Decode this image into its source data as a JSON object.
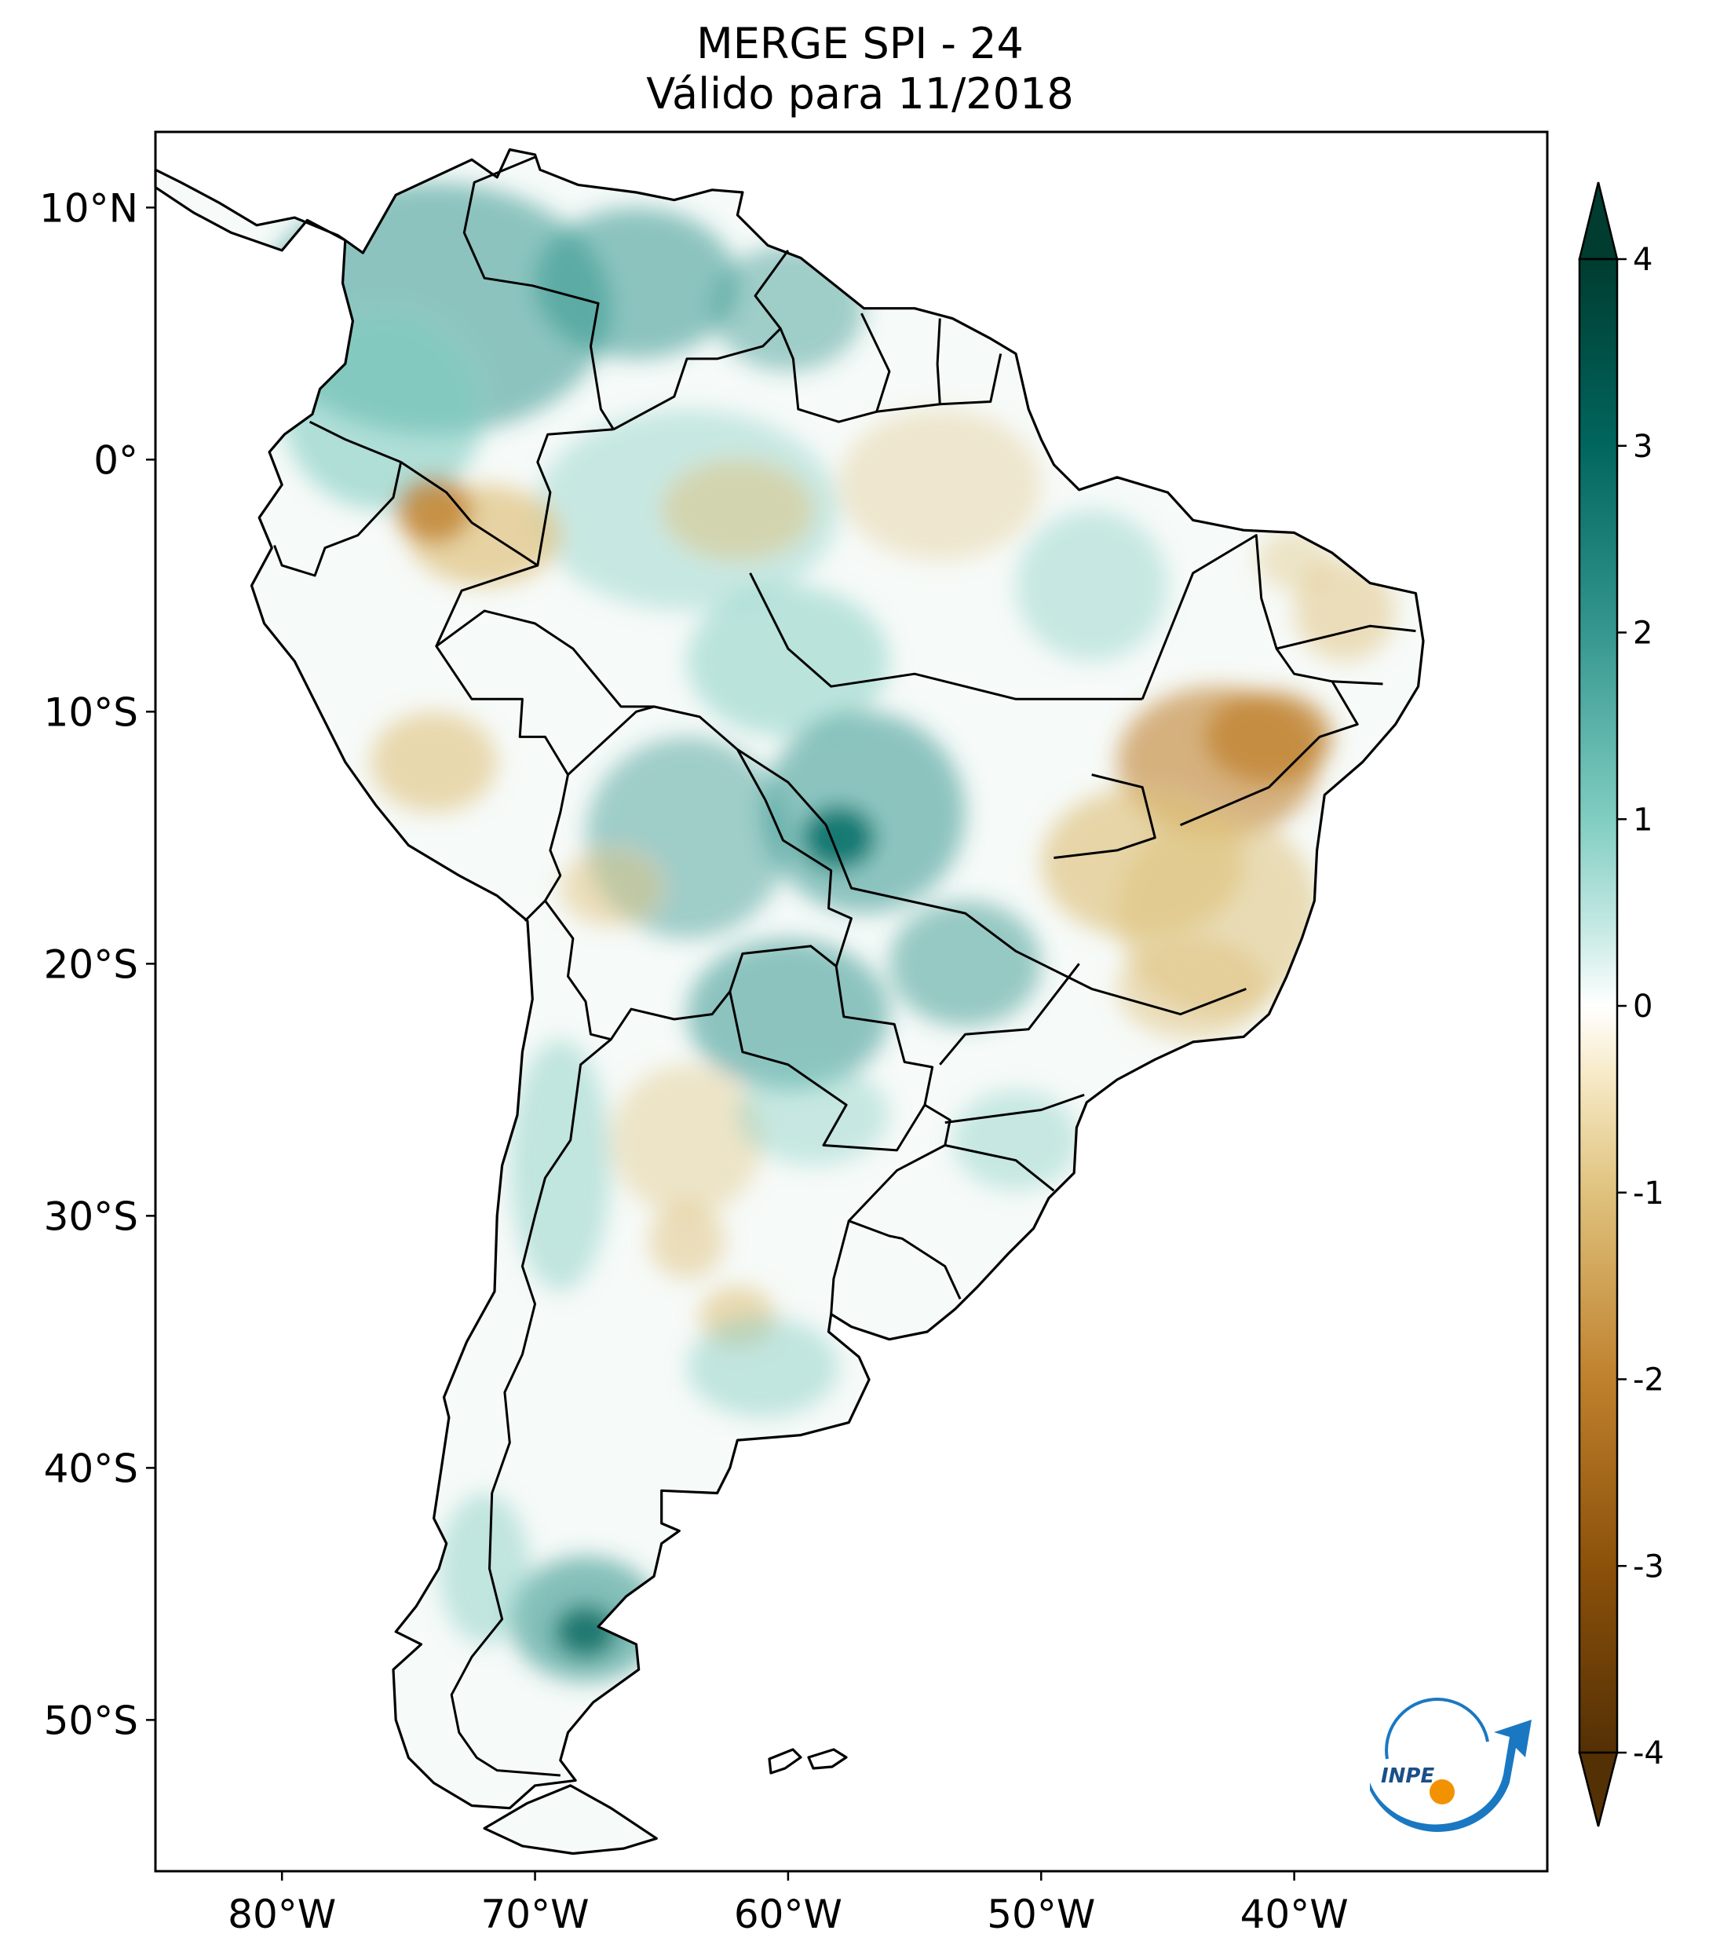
{
  "title": {
    "line1": "MERGE   SPI - 24",
    "line2": "Válido para 11/2018"
  },
  "map": {
    "variable": "SPI - 24",
    "lon_range": [
      -85,
      -30
    ],
    "lat_range": [
      -56,
      13
    ],
    "lon_ticks": [
      {
        "value": -80,
        "label": "80°W"
      },
      {
        "value": -70,
        "label": "70°W"
      },
      {
        "value": -60,
        "label": "60°W"
      },
      {
        "value": -50,
        "label": "50°W"
      },
      {
        "value": -40,
        "label": "40°W"
      }
    ],
    "lat_ticks": [
      {
        "value": 10,
        "label": "10°N"
      },
      {
        "value": 0,
        "label": "0°"
      },
      {
        "value": -10,
        "label": "10°S"
      },
      {
        "value": -20,
        "label": "20°S"
      },
      {
        "value": -30,
        "label": "30°S"
      },
      {
        "value": -40,
        "label": "40°S"
      },
      {
        "value": -50,
        "label": "50°S"
      }
    ]
  },
  "colorbar": {
    "range": [
      -4,
      4
    ],
    "extend": "both",
    "ticks": [
      {
        "value": 4,
        "label": "4"
      },
      {
        "value": 3,
        "label": "3"
      },
      {
        "value": 2,
        "label": "2"
      },
      {
        "value": 1,
        "label": "1"
      },
      {
        "value": 0,
        "label": "0"
      },
      {
        "value": -1,
        "label": "-1"
      },
      {
        "value": -2,
        "label": "-2"
      },
      {
        "value": -3,
        "label": "-3"
      },
      {
        "value": -4,
        "label": "-4"
      }
    ],
    "colors": {
      "max": "#003c30",
      "high": "#35978f",
      "mid_high": "#80cdc1",
      "neutral": "#f5f5f5",
      "mid_low": "#dfc27d",
      "low": "#bf812d",
      "min": "#543005"
    }
  },
  "logo": {
    "text": "INPE",
    "colors": {
      "arrow": "#1a78c2",
      "dot": "#f39200"
    }
  }
}
